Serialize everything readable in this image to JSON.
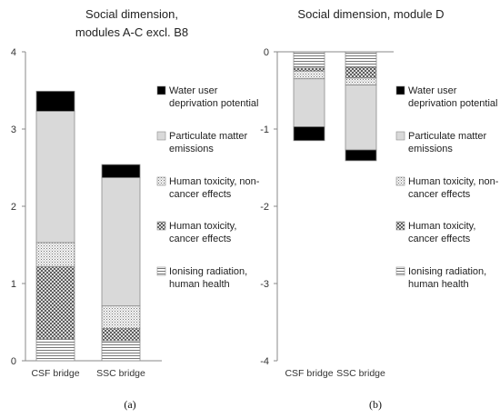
{
  "chart_data": [
    {
      "type": "bar",
      "stacked": true,
      "title_lines": [
        "Social dimension,",
        "modules A-C excl. B8"
      ],
      "panel_label": "(a)",
      "categories": [
        "CSF bridge",
        "SSC bridge"
      ],
      "ylim": [
        0,
        4
      ],
      "yticks": [
        0,
        1,
        2,
        3,
        4
      ],
      "grid": false,
      "legend_position": "right",
      "series": [
        {
          "name": "Ionising radiation, human health",
          "values": [
            0.28,
            0.26
          ]
        },
        {
          "name": "Human toxicity, cancer effects",
          "values": [
            0.94,
            0.16
          ]
        },
        {
          "name": "Human toxicity, non-cancer effects",
          "values": [
            0.31,
            0.29
          ]
        },
        {
          "name": "Particulate matter emissions",
          "values": [
            1.7,
            1.66
          ]
        },
        {
          "name": "Water user deprivation potential",
          "values": [
            0.26,
            0.17
          ]
        }
      ]
    },
    {
      "type": "bar",
      "stacked": true,
      "title_lines": [
        "Social dimension, module D"
      ],
      "panel_label": "(b)",
      "categories": [
        "CSF bridge",
        "SSC bridge"
      ],
      "ylim": [
        -4,
        0
      ],
      "yticks": [
        0,
        -1,
        -2,
        -3,
        -4
      ],
      "grid": false,
      "legend_position": "right",
      "series": [
        {
          "name": "Ionising radiation, human health",
          "values": [
            -0.21,
            -0.2
          ]
        },
        {
          "name": "Human toxicity, cancer effects",
          "values": [
            -0.04,
            -0.14
          ]
        },
        {
          "name": "Human toxicity, non-cancer effects",
          "values": [
            -0.1,
            -0.09
          ]
        },
        {
          "name": "Particulate matter emissions",
          "values": [
            -0.62,
            -0.84
          ]
        },
        {
          "name": "Water user deprivation potential",
          "values": [
            -0.18,
            -0.14
          ]
        }
      ]
    }
  ],
  "legend_lines": [
    [
      "Water user",
      "deprivation potential"
    ],
    [
      "Particulate matter",
      "emissions"
    ],
    [
      "Human toxicity, non-",
      "cancer effects"
    ],
    [
      "Human toxicity,",
      "cancer effects"
    ],
    [
      "Ionising radiation,",
      "human health"
    ]
  ],
  "styles": {
    "axis_color": "#8a8a8a",
    "bar_outline": "#8a8a8a",
    "water_fill": "#000000",
    "particulate_fill": "#d9d9d9"
  }
}
